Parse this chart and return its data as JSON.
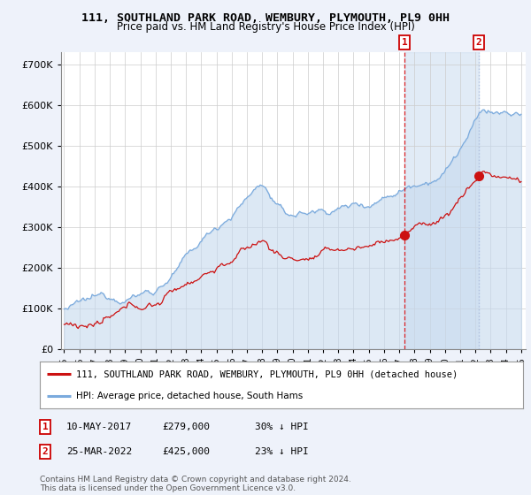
{
  "title": "111, SOUTHLAND PARK ROAD, WEMBURY, PLYMOUTH, PL9 0HH",
  "subtitle": "Price paid vs. HM Land Registry's House Price Index (HPI)",
  "ytick_values": [
    0,
    100000,
    200000,
    300000,
    400000,
    500000,
    600000,
    700000
  ],
  "ylim": [
    0,
    730000
  ],
  "xlim_start": 1994.8,
  "xlim_end": 2025.3,
  "hpi_color": "#7aaadd",
  "hpi_fill_color": "#c5d9ee",
  "price_color": "#cc1111",
  "vline1_color": "#dd0000",
  "vline2_color": "#aabbdd",
  "marker1_date": 2017.36,
  "marker2_date": 2022.23,
  "marker1_price": 279000,
  "marker2_price": 425000,
  "highlight_alpha": 0.18,
  "legend_line1": "111, SOUTHLAND PARK ROAD, WEMBURY, PLYMOUTH, PL9 0HH (detached house)",
  "legend_line2": "HPI: Average price, detached house, South Hams",
  "footnote": "Contains HM Land Registry data © Crown copyright and database right 2024.\nThis data is licensed under the Open Government Licence v3.0.",
  "background_color": "#eef2fa",
  "plot_bg_color": "#ffffff",
  "grid_color": "#cccccc"
}
